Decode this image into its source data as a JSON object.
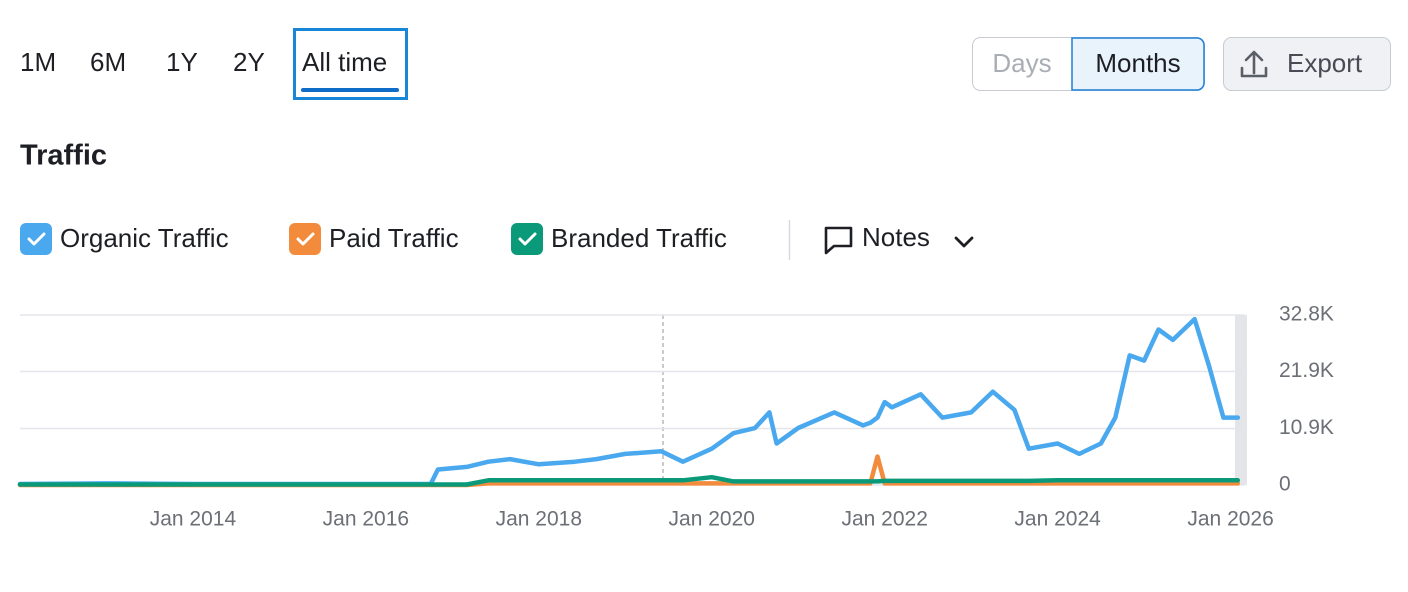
{
  "range_tabs": [
    "1M",
    "6M",
    "1Y",
    "2Y",
    "All time"
  ],
  "granularity": [
    "Days",
    "Months"
  ],
  "export": "Export",
  "notes": "Notes",
  "chart_data": {
    "type": "line",
    "title": "Traffic",
    "x": [
      "2012-01",
      "2013-01",
      "2014-01",
      "2015-01",
      "2016-01",
      "2016-10",
      "2016-11",
      "2017-03",
      "2017-06",
      "2017-09",
      "2018-01",
      "2018-06",
      "2018-09",
      "2019-01",
      "2019-06",
      "2019-09",
      "2020-01",
      "2020-04",
      "2020-07",
      "2020-09",
      "2020-10",
      "2021-01",
      "2021-06",
      "2021-10",
      "2021-11",
      "2021-12",
      "2022-01",
      "2022-02",
      "2022-06",
      "2022-09",
      "2023-01",
      "2023-04",
      "2023-07",
      "2023-09",
      "2024-01",
      "2024-04",
      "2024-07",
      "2024-09",
      "2024-11",
      "2025-01",
      "2025-03",
      "2025-05",
      "2025-08",
      "2025-10",
      "2025-12",
      "2026-02"
    ],
    "series": [
      {
        "name": "Organic Traffic",
        "color": "#4aa8ee",
        "values": [
          200,
          300,
          200,
          200,
          200,
          200,
          3000,
          3500,
          4500,
          5000,
          4000,
          4500,
          5000,
          6000,
          6500,
          4500,
          7000,
          10000,
          11000,
          14000,
          8000,
          11000,
          14000,
          11500,
          12000,
          13000,
          16000,
          15000,
          17500,
          13000,
          14000,
          18000,
          14500,
          7000,
          8000,
          6000,
          8000,
          13000,
          25000,
          24000,
          30000,
          28000,
          32000,
          23000,
          13000,
          13000
        ]
      },
      {
        "name": "Paid Traffic",
        "color": "#f28c3c",
        "values": [
          0,
          0,
          0,
          0,
          0,
          0,
          0,
          0,
          300,
          300,
          300,
          300,
          300,
          300,
          300,
          300,
          300,
          300,
          300,
          300,
          300,
          300,
          300,
          300,
          300,
          5500,
          300,
          300,
          300,
          300,
          300,
          300,
          300,
          300,
          300,
          300,
          300,
          300,
          300,
          300,
          300,
          300,
          300,
          300,
          300,
          300
        ]
      },
      {
        "name": "Branded Traffic",
        "color": "#0a9a79",
        "values": [
          100,
          100,
          100,
          100,
          100,
          100,
          100,
          100,
          900,
          900,
          900,
          900,
          900,
          900,
          900,
          900,
          1500,
          700,
          700,
          700,
          700,
          700,
          700,
          700,
          700,
          700,
          800,
          800,
          800,
          800,
          800,
          800,
          800,
          800,
          900,
          900,
          900,
          900,
          900,
          900,
          900,
          900,
          900,
          900,
          900,
          900
        ]
      }
    ],
    "xlim": [
      "2012-01",
      "2026-03"
    ],
    "xticks": [
      {
        "value": "2014-01",
        "label": "Jan 2014"
      },
      {
        "value": "2016-01",
        "label": "Jan 2016"
      },
      {
        "value": "2018-01",
        "label": "Jan 2018"
      },
      {
        "value": "2020-01",
        "label": "Jan 2020"
      },
      {
        "value": "2022-01",
        "label": "Jan 2022"
      },
      {
        "value": "2024-01",
        "label": "Jan 2024"
      },
      {
        "value": "2026-01",
        "label": "Jan 2026"
      }
    ],
    "ylim": [
      0,
      32800
    ],
    "yticks": [
      0,
      {
        "value": 10900,
        "label": "10.9K"
      },
      {
        "value": 21900,
        "label": "21.9K"
      },
      {
        "value": 32800,
        "label": "32.8K"
      }
    ],
    "grid": true
  }
}
